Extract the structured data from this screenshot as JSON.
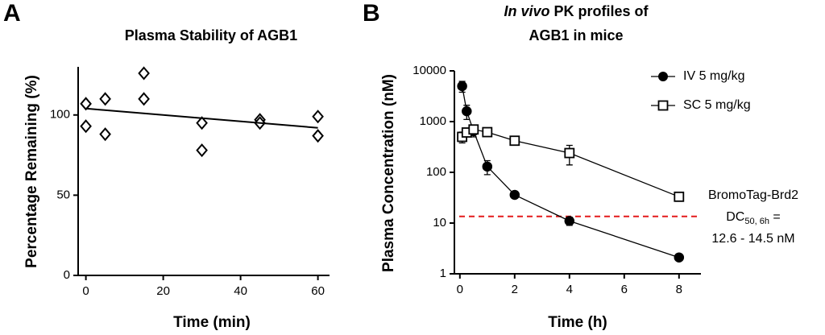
{
  "chart_data": [
    {
      "type": "scatter",
      "panel_label": "A",
      "title": "Plasma Stability of AGB1",
      "x_label": "Time (min)",
      "y_label": "Percentage Remaining (%)",
      "xlim": [
        -2,
        63
      ],
      "ylim": [
        0,
        130
      ],
      "xticks": [
        0,
        20,
        40,
        60
      ],
      "yticks": [
        0,
        50,
        100
      ],
      "series": [
        {
          "marker": "diamond",
          "color": "#000000",
          "x": [
            0,
            0,
            5,
            5,
            15,
            15,
            30,
            30,
            45,
            45,
            60,
            60
          ],
          "values": [
            107,
            93,
            110,
            88,
            126,
            110,
            95,
            78,
            97,
            95,
            99,
            87
          ]
        },
        {
          "style": "line",
          "color": "#000000",
          "x": [
            0,
            60
          ],
          "values": [
            104,
            92
          ]
        }
      ]
    },
    {
      "type": "line",
      "panel_label": "B",
      "title": {
        "italic": "In vivo",
        "rest": " PK profiles of",
        "line2": "AGB1 in mice"
      },
      "x_label": "Time (h)",
      "y_label": "Plasma Concentration (nM)",
      "xlim": [
        -0.2,
        8.8
      ],
      "ylim": [
        1,
        10000
      ],
      "y_scale": "log",
      "xticks": [
        0,
        2,
        4,
        6,
        8
      ],
      "yticks": [
        1,
        10,
        100,
        1000,
        10000
      ],
      "legend": "upper right",
      "series": [
        {
          "name": "IV 5 mg/kg",
          "marker": "circle",
          "filled": true,
          "color": "#000000",
          "x": [
            0.083,
            0.25,
            0.5,
            1,
            2,
            4,
            8
          ],
          "values": [
            5000,
            1600,
            650,
            130,
            36,
            11,
            2.1
          ],
          "errors": [
            1200,
            500,
            150,
            40,
            5,
            2,
            0.2
          ]
        },
        {
          "name": "SC 5 mg/kg",
          "marker": "square",
          "filled": false,
          "color": "#000000",
          "x": [
            0.083,
            0.25,
            0.5,
            1,
            2,
            4,
            8
          ],
          "values": [
            500,
            610,
            700,
            620,
            420,
            240,
            33
          ],
          "errors": [
            120,
            100,
            100,
            80,
            60,
            100,
            5
          ]
        }
      ],
      "threshold": {
        "value": 13.5,
        "color": "#e31a1c"
      },
      "annotation": {
        "line1": "BromoTag-Brd2",
        "line2_main": "DC",
        "line2_sub": "50, 6h",
        "line2_end": " =",
        "line3": "12.6 - 14.5 nM"
      }
    }
  ]
}
